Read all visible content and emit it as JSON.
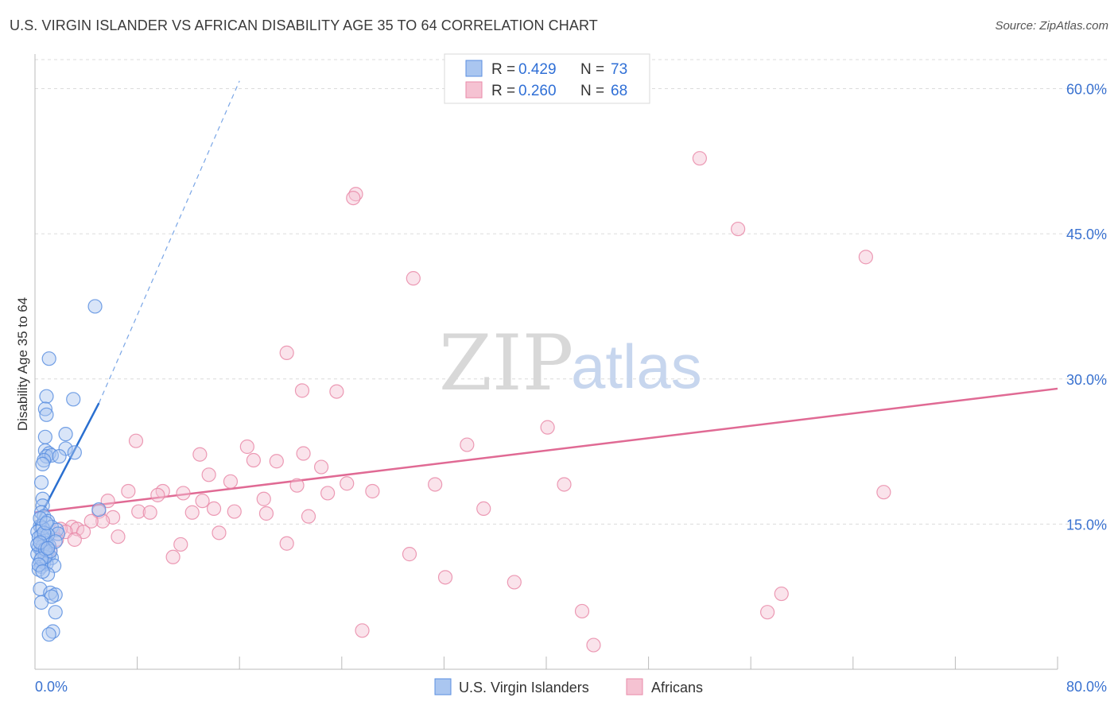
{
  "header": {
    "title": "U.S. VIRGIN ISLANDER VS AFRICAN DISABILITY AGE 35 TO 64 CORRELATION CHART",
    "source": "Source: ZipAtlas.com"
  },
  "watermark": {
    "zip": "ZIP",
    "atlas": "atlas"
  },
  "colors": {
    "blue": "#5b8fe0",
    "blue_fill": "#aac6f0",
    "blue_line": "#2a6fd0",
    "pink": "#e98aa8",
    "pink_fill": "#f5c2d2",
    "pink_line": "#e06a94",
    "tick_text": "#3a72d0",
    "grid": "#dcdcdc"
  },
  "legend": {
    "entries": [
      {
        "r_label": "R =",
        "r_value": "0.429",
        "n_label": "N =",
        "n_value": "73",
        "series": "U.S. Virgin Islanders"
      },
      {
        "r_label": "R =",
        "r_value": "0.260",
        "n_label": "N =",
        "n_value": "68",
        "series": "Africans"
      }
    ]
  },
  "chart_data": {
    "type": "scatter",
    "title": "U.S. VIRGIN ISLANDER VS AFRICAN DISABILITY AGE 35 TO 64 CORRELATION CHART",
    "xlabel": "",
    "ylabel": "Disability Age 35 to 64",
    "xlim": [
      0,
      80
    ],
    "ylim": [
      0,
      63
    ],
    "x_tick_labels": [
      "0.0%",
      "80.0%"
    ],
    "y_ticks": [
      15,
      30,
      45,
      60
    ],
    "y_tick_labels": [
      "15.0%",
      "30.0%",
      "45.0%",
      "60.0%"
    ],
    "legend_position": "bottom-center",
    "series": [
      {
        "name": "U.S. Virgin Islanders",
        "r": 0.429,
        "n": 73,
        "trend": {
          "x0": 0.0,
          "y0": 14.8,
          "x1": 5.0,
          "y1": 27.5,
          "dash_to_x": 16.0,
          "dash_to_y": 60.8
        },
        "points": [
          [
            4.7,
            37.5
          ],
          [
            1.1,
            32.1
          ],
          [
            0.9,
            28.2
          ],
          [
            3.0,
            27.9
          ],
          [
            0.8,
            26.9
          ],
          [
            0.9,
            26.3
          ],
          [
            2.4,
            24.3
          ],
          [
            0.8,
            24.0
          ],
          [
            0.8,
            22.6
          ],
          [
            2.4,
            22.8
          ],
          [
            3.1,
            22.4
          ],
          [
            1.1,
            22.3
          ],
          [
            0.9,
            22.0
          ],
          [
            1.3,
            22.1
          ],
          [
            0.7,
            21.6
          ],
          [
            0.6,
            21.2
          ],
          [
            1.9,
            22.0
          ],
          [
            0.5,
            19.3
          ],
          [
            0.6,
            17.6
          ],
          [
            0.6,
            16.9
          ],
          [
            5.0,
            16.5
          ],
          [
            0.5,
            16.2
          ],
          [
            0.7,
            15.8
          ],
          [
            1.0,
            15.3
          ],
          [
            0.4,
            14.8
          ],
          [
            1.3,
            14.7
          ],
          [
            1.7,
            14.4
          ],
          [
            1.8,
            14.0
          ],
          [
            0.2,
            14.2
          ],
          [
            0.5,
            13.8
          ],
          [
            0.7,
            13.5
          ],
          [
            0.8,
            13.3
          ],
          [
            0.9,
            13.0
          ],
          [
            1.1,
            12.8
          ],
          [
            0.3,
            12.6
          ],
          [
            0.5,
            12.3
          ],
          [
            0.6,
            12.1
          ],
          [
            0.9,
            12.0
          ],
          [
            1.1,
            11.8
          ],
          [
            1.3,
            11.5
          ],
          [
            0.4,
            11.2
          ],
          [
            0.7,
            11.0
          ],
          [
            0.9,
            10.9
          ],
          [
            0.5,
            10.6
          ],
          [
            1.5,
            10.7
          ],
          [
            0.3,
            10.3
          ],
          [
            1.0,
            9.8
          ],
          [
            0.4,
            8.3
          ],
          [
            1.2,
            7.9
          ],
          [
            1.6,
            7.7
          ],
          [
            1.3,
            7.5
          ],
          [
            0.5,
            6.9
          ],
          [
            1.6,
            5.9
          ],
          [
            1.4,
            3.9
          ],
          [
            1.1,
            3.6
          ],
          [
            0.3,
            13.6
          ],
          [
            0.6,
            12.7
          ],
          [
            0.8,
            11.6
          ],
          [
            0.2,
            11.9
          ],
          [
            0.6,
            14.6
          ],
          [
            1.0,
            13.9
          ],
          [
            0.4,
            15.6
          ],
          [
            0.2,
            12.9
          ],
          [
            0.8,
            12.4
          ],
          [
            1.2,
            12.2
          ],
          [
            0.5,
            11.4
          ],
          [
            0.3,
            10.8
          ],
          [
            0.7,
            14.1
          ],
          [
            0.9,
            15.1
          ],
          [
            1.6,
            13.2
          ],
          [
            0.4,
            13.1
          ],
          [
            0.6,
            10.1
          ],
          [
            1.0,
            12.5
          ]
        ]
      },
      {
        "name": "Africans",
        "r": 0.26,
        "n": 68,
        "trend": {
          "x0": 0.0,
          "y0": 16.2,
          "x1": 80.0,
          "y1": 29.0
        },
        "points": [
          [
            52.0,
            52.8
          ],
          [
            25.1,
            49.1
          ],
          [
            24.9,
            48.7
          ],
          [
            55.0,
            45.5
          ],
          [
            65.0,
            42.6
          ],
          [
            29.6,
            40.4
          ],
          [
            19.7,
            32.7
          ],
          [
            20.9,
            28.8
          ],
          [
            23.6,
            28.7
          ],
          [
            40.1,
            25.0
          ],
          [
            7.9,
            23.6
          ],
          [
            33.8,
            23.2
          ],
          [
            16.6,
            23.0
          ],
          [
            12.9,
            22.2
          ],
          [
            21.0,
            22.3
          ],
          [
            17.1,
            21.6
          ],
          [
            18.9,
            21.5
          ],
          [
            22.4,
            20.9
          ],
          [
            13.6,
            20.1
          ],
          [
            15.3,
            19.4
          ],
          [
            24.4,
            19.2
          ],
          [
            31.3,
            19.1
          ],
          [
            41.4,
            19.1
          ],
          [
            20.5,
            19.0
          ],
          [
            7.3,
            18.4
          ],
          [
            10.0,
            18.4
          ],
          [
            26.4,
            18.4
          ],
          [
            11.6,
            18.2
          ],
          [
            22.9,
            18.2
          ],
          [
            9.6,
            18.0
          ],
          [
            66.4,
            18.3
          ],
          [
            5.7,
            17.4
          ],
          [
            13.1,
            17.4
          ],
          [
            17.9,
            17.6
          ],
          [
            35.1,
            16.6
          ],
          [
            14.0,
            16.6
          ],
          [
            5.0,
            16.3
          ],
          [
            8.1,
            16.3
          ],
          [
            9.0,
            16.2
          ],
          [
            12.3,
            16.2
          ],
          [
            15.6,
            16.3
          ],
          [
            18.1,
            16.1
          ],
          [
            6.1,
            15.7
          ],
          [
            21.4,
            15.8
          ],
          [
            5.3,
            15.3
          ],
          [
            4.4,
            15.3
          ],
          [
            2.9,
            14.7
          ],
          [
            2.0,
            14.5
          ],
          [
            3.3,
            14.5
          ],
          [
            3.8,
            14.2
          ],
          [
            2.4,
            14.2
          ],
          [
            14.4,
            14.1
          ],
          [
            6.5,
            13.7
          ],
          [
            3.1,
            13.4
          ],
          [
            1.7,
            13.4
          ],
          [
            11.4,
            12.9
          ],
          [
            19.7,
            13.0
          ],
          [
            1.2,
            12.3
          ],
          [
            1.0,
            12.1
          ],
          [
            10.8,
            11.6
          ],
          [
            29.3,
            11.9
          ],
          [
            32.1,
            9.5
          ],
          [
            37.5,
            9.0
          ],
          [
            58.4,
            7.8
          ],
          [
            42.8,
            6.0
          ],
          [
            57.3,
            5.9
          ],
          [
            25.6,
            4.0
          ],
          [
            43.7,
            2.5
          ]
        ]
      }
    ]
  }
}
